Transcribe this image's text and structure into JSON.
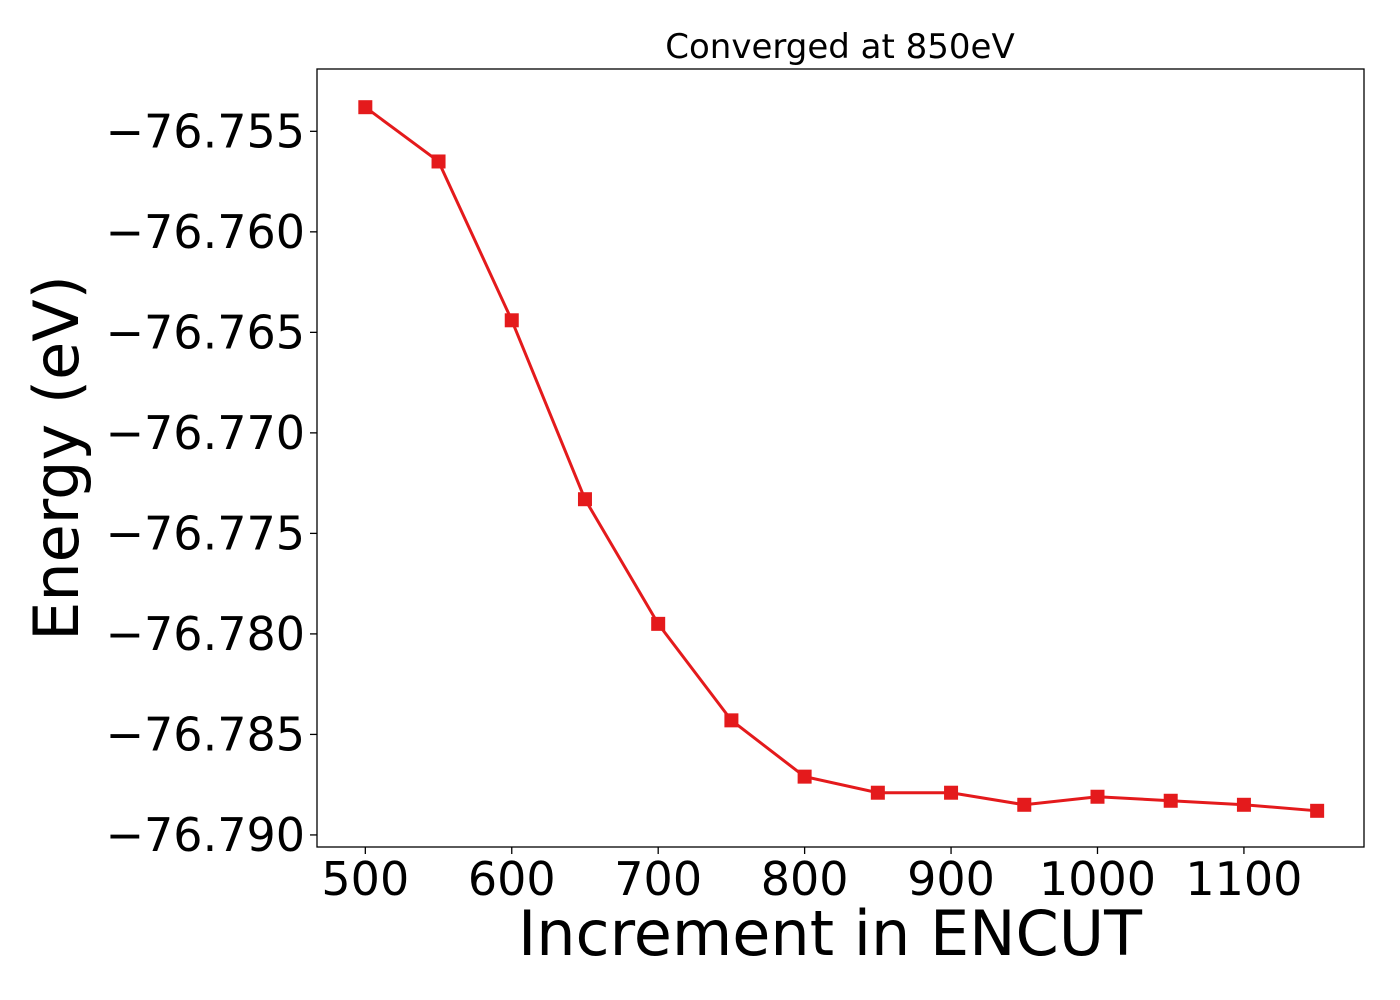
{
  "chart_data": {
    "type": "line",
    "title": "Converged at 850eV",
    "xlabel": "Increment in ENCUT",
    "ylabel": "Energy (eV)",
    "xlim": [
      467,
      1182
    ],
    "ylim": [
      -76.7906,
      -76.7519
    ],
    "x_ticks": [
      500,
      600,
      700,
      800,
      900,
      1000,
      1100
    ],
    "y_ticks": [
      -76.755,
      -76.76,
      -76.765,
      -76.77,
      -76.775,
      -76.78,
      -76.785,
      -76.79
    ],
    "y_tick_labels": [
      "−76.755",
      "−76.760",
      "−76.765",
      "−76.770",
      "−76.775",
      "−76.780",
      "−76.785",
      "−76.790"
    ],
    "grid": false,
    "legend": "none",
    "series": [
      {
        "color": "#e41a1c",
        "marker": "square",
        "x": [
          500,
          550,
          600,
          650,
          700,
          750,
          800,
          850,
          900,
          950,
          1000,
          1050,
          1100,
          1150
        ],
        "y": [
          -76.7538,
          -76.7565,
          -76.7644,
          -76.7733,
          -76.7795,
          -76.7843,
          -76.7871,
          -76.7879,
          -76.7879,
          -76.7885,
          -76.7881,
          -76.7883,
          -76.7885,
          -76.7888
        ]
      }
    ]
  }
}
